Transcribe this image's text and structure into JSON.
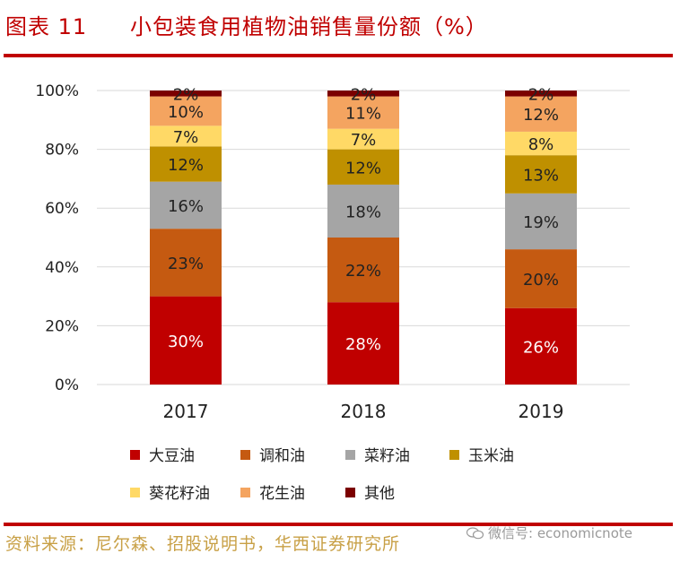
{
  "header": {
    "figure_label": "图表 11",
    "title": "小包装食用植物油销售量份额（%）"
  },
  "footer": {
    "source": "资料来源：尼尔森、招股说明书，华西证券研究所",
    "watermark": "微信号: economicnote"
  },
  "colors": {
    "brand_red": "#c00000",
    "source_text": "#c8a046"
  },
  "chart_data": {
    "type": "bar",
    "stacked": true,
    "categories": [
      "2017",
      "2018",
      "2019"
    ],
    "ylim": [
      0,
      100
    ],
    "yticks": [
      0,
      20,
      40,
      60,
      80,
      100
    ],
    "ytick_labels": [
      "0%",
      "20%",
      "40%",
      "60%",
      "80%",
      "100%"
    ],
    "grid": true,
    "legend_position": "bottom",
    "series": [
      {
        "name": "大豆油",
        "color": "#c00000",
        "label_color": "#ffffff",
        "values": [
          30,
          28,
          26
        ],
        "labels": [
          "30%",
          "28%",
          "26%"
        ]
      },
      {
        "name": "调和油",
        "color": "#c55a11",
        "label_color": "#222222",
        "values": [
          23,
          22,
          20
        ],
        "labels": [
          "23%",
          "22%",
          "20%"
        ]
      },
      {
        "name": "菜籽油",
        "color": "#a5a5a5",
        "label_color": "#222222",
        "values": [
          16,
          18,
          19
        ],
        "labels": [
          "16%",
          "18%",
          "19%"
        ]
      },
      {
        "name": "玉米油",
        "color": "#bf9000",
        "label_color": "#222222",
        "values": [
          12,
          12,
          13
        ],
        "labels": [
          "12%",
          "12%",
          "13%"
        ]
      },
      {
        "name": "葵花籽油",
        "color": "#ffd966",
        "label_color": "#222222",
        "values": [
          7,
          7,
          8
        ],
        "labels": [
          "7%",
          "7%",
          "8%"
        ]
      },
      {
        "name": "花生油",
        "color": "#f4a460",
        "label_color": "#222222",
        "values": [
          10,
          11,
          12
        ],
        "labels": [
          "10%",
          "11%",
          "12%"
        ]
      },
      {
        "name": "其他",
        "color": "#7b0000",
        "label_color": "#222222",
        "values": [
          2,
          2,
          2
        ],
        "labels": [
          "2%",
          "2%",
          "2%"
        ]
      }
    ]
  }
}
